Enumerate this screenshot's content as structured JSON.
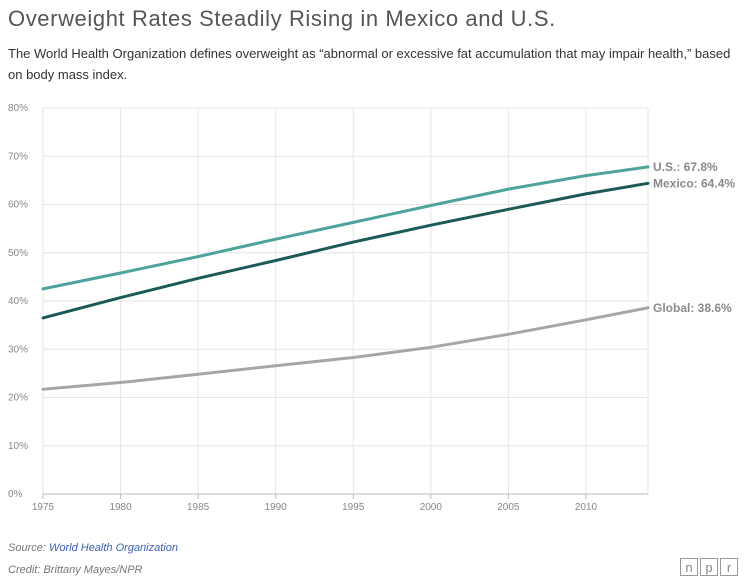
{
  "header": {
    "title": "Overweight Rates Steadily Rising in Mexico and U.S.",
    "subtitle": "The World Health Organization defines overweight as “abnormal or excessive fat accumulation that may impair health,” based on body mass index."
  },
  "footer": {
    "source_prefix": "Source: ",
    "source_link": "World Health Organization",
    "credit": "Credit: Brittany Mayes/NPR",
    "logo_letters": [
      "n",
      "p",
      "r"
    ]
  },
  "colors": {
    "us": "#4ea39d",
    "mexico": "#1a5a57",
    "global": "#a6a6a6",
    "grid": "#e6e6e6"
  },
  "chart_data": {
    "type": "line",
    "title": "Overweight Rates Steadily Rising in Mexico and U.S.",
    "xlabel": "",
    "ylabel": "",
    "xlim": [
      1975,
      2014
    ],
    "ylim": [
      0,
      80
    ],
    "x_ticks": [
      1975,
      1980,
      1985,
      1990,
      1995,
      2000,
      2005,
      2010
    ],
    "y_ticks": [
      0,
      10,
      20,
      30,
      40,
      50,
      60,
      70,
      80
    ],
    "y_tick_labels": [
      "0%",
      "10%",
      "20%",
      "30%",
      "40%",
      "50%",
      "60%",
      "70%",
      "80%"
    ],
    "grid": true,
    "series": [
      {
        "name": "U.S.",
        "end_label": "U.S.: 67.8%",
        "color_key": "us",
        "x": [
          1975,
          1980,
          1985,
          1990,
          1995,
          2000,
          2005,
          2010,
          2014
        ],
        "values": [
          42.5,
          45.8,
          49.2,
          52.8,
          56.3,
          59.8,
          63.2,
          66.0,
          67.8
        ]
      },
      {
        "name": "Mexico",
        "end_label": "Mexico: 64.4%",
        "color_key": "mexico",
        "x": [
          1975,
          1980,
          1985,
          1990,
          1995,
          2000,
          2005,
          2010,
          2014
        ],
        "values": [
          36.5,
          40.7,
          44.7,
          48.4,
          52.2,
          55.7,
          59.0,
          62.2,
          64.4
        ]
      },
      {
        "name": "Global",
        "end_label": "Global: 38.6%",
        "color_key": "global",
        "x": [
          1975,
          1980,
          1985,
          1990,
          1995,
          2000,
          2005,
          2010,
          2014
        ],
        "values": [
          21.7,
          23.1,
          24.8,
          26.6,
          28.3,
          30.4,
          33.1,
          36.1,
          38.6
        ]
      }
    ]
  }
}
